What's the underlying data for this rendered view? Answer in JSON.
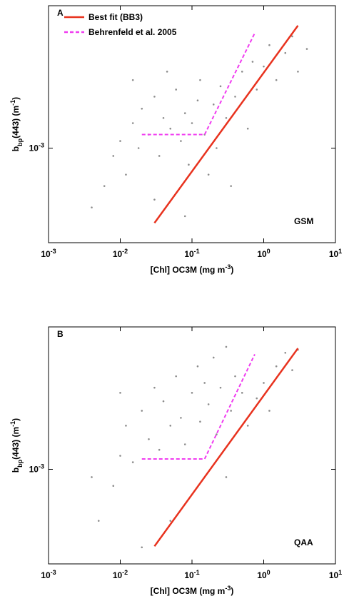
{
  "chart_data": [
    {
      "type": "scatter",
      "panel": "A",
      "annotation": "GSM",
      "legend": true,
      "xscale": "log",
      "yscale": "log",
      "xlabel": [
        {
          "text": "[Chl] OC3M (mg m"
        },
        {
          "text": "-3",
          "shift": "super"
        },
        {
          "text": ")"
        }
      ],
      "ylabel": [
        {
          "text": "b"
        },
        {
          "text": "bp",
          "shift": "sub"
        },
        {
          "text": "(443) (m"
        },
        {
          "text": "-1",
          "shift": "super"
        },
        {
          "text": ")"
        }
      ],
      "xlim": [
        0.001,
        10
      ],
      "ylim": [
        0.00028,
        0.0068
      ],
      "xticks": [
        {
          "value": 0.001,
          "label": "10",
          "exponent": "-3"
        },
        {
          "value": 0.01,
          "label": "10",
          "exponent": "-2"
        },
        {
          "value": 0.1,
          "label": "10",
          "exponent": "-1"
        },
        {
          "value": 1,
          "label": "10",
          "exponent": "0"
        },
        {
          "value": 10,
          "label": "10",
          "exponent": "1"
        }
      ],
      "yticks": [
        {
          "value": 0.001,
          "label": "10",
          "exponent": "-3"
        }
      ],
      "points": {
        "color": "#8c8c8c",
        "x": [
          0.004,
          0.006,
          0.008,
          0.01,
          0.012,
          0.015,
          0.018,
          0.02,
          0.025,
          0.03,
          0.035,
          0.04,
          0.05,
          0.06,
          0.07,
          0.08,
          0.09,
          0.1,
          0.12,
          0.13,
          0.15,
          0.17,
          0.2,
          0.22,
          0.25,
          0.3,
          0.35,
          0.4,
          0.5,
          0.6,
          0.7,
          0.8,
          1,
          1.2,
          1.5,
          2,
          2.5,
          3,
          4,
          0.03,
          0.08,
          0.015,
          0.045
        ],
        "y": [
          0.00045,
          0.0006,
          0.0009,
          0.0011,
          0.0007,
          0.0014,
          0.001,
          0.0017,
          0.0012,
          0.002,
          0.0009,
          0.0015,
          0.0013,
          0.0022,
          0.0011,
          0.0016,
          0.0008,
          0.0014,
          0.0019,
          0.0025,
          0.0012,
          0.0007,
          0.0018,
          0.001,
          0.0023,
          0.0015,
          0.0006,
          0.002,
          0.0028,
          0.0013,
          0.0032,
          0.0022,
          0.003,
          0.004,
          0.0025,
          0.0036,
          0.0045,
          0.0028,
          0.0038,
          0.0005,
          0.0004,
          0.0025,
          0.0028
        ]
      },
      "series": [
        {
          "name": "Best fit (BB3)",
          "color": "#e8321e",
          "dash": false,
          "x": [
            0.03,
            3
          ],
          "y": [
            0.000365,
            0.0052
          ]
        },
        {
          "name": "Behrenfeld et al. 2005",
          "color": "#f03cf0",
          "dash": true,
          "x": [
            0.02,
            0.15,
            0.75
          ],
          "y": [
            0.0012,
            0.0012,
            0.0047
          ]
        }
      ]
    },
    {
      "type": "scatter",
      "panel": "B",
      "annotation": "QAA",
      "legend": false,
      "xscale": "log",
      "yscale": "log",
      "xlabel": [
        {
          "text": "[Chl] OC3M (mg m"
        },
        {
          "text": "-3",
          "shift": "super"
        },
        {
          "text": ")"
        }
      ],
      "ylabel": [
        {
          "text": "b"
        },
        {
          "text": "bp",
          "shift": "sub"
        },
        {
          "text": "(443) (m"
        },
        {
          "text": "-1",
          "shift": "super"
        },
        {
          "text": ")"
        }
      ],
      "xlim": [
        0.001,
        10
      ],
      "ylim": [
        0.00028,
        0.0068
      ],
      "xticks": [
        {
          "value": 0.001,
          "label": "10",
          "exponent": "-3"
        },
        {
          "value": 0.01,
          "label": "10",
          "exponent": "-2"
        },
        {
          "value": 0.1,
          "label": "10",
          "exponent": "-1"
        },
        {
          "value": 1,
          "label": "10",
          "exponent": "0"
        },
        {
          "value": 10,
          "label": "10",
          "exponent": "1"
        }
      ],
      "yticks": [
        {
          "value": 0.001,
          "label": "10",
          "exponent": "-3"
        }
      ],
      "points": {
        "color": "#8c8c8c",
        "x": [
          0.005,
          0.008,
          0.01,
          0.012,
          0.015,
          0.02,
          0.025,
          0.03,
          0.035,
          0.04,
          0.05,
          0.06,
          0.07,
          0.08,
          0.1,
          0.12,
          0.13,
          0.15,
          0.17,
          0.2,
          0.22,
          0.25,
          0.3,
          0.35,
          0.4,
          0.5,
          0.6,
          0.8,
          1,
          1.2,
          1.5,
          2,
          2.5,
          3,
          0.02,
          0.05,
          0.3,
          0.01,
          0.004
        ],
        "y": [
          0.0005,
          0.0008,
          0.0012,
          0.0018,
          0.0011,
          0.0022,
          0.0015,
          0.003,
          0.0013,
          0.0025,
          0.0018,
          0.0035,
          0.002,
          0.0014,
          0.0028,
          0.004,
          0.0019,
          0.0032,
          0.0024,
          0.0045,
          0.0016,
          0.003,
          0.0052,
          0.0022,
          0.0035,
          0.0028,
          0.0018,
          0.0026,
          0.0032,
          0.0022,
          0.004,
          0.0048,
          0.0038,
          0.005,
          0.00035,
          0.0005,
          0.0009,
          0.0028,
          0.0009
        ]
      },
      "series": [
        {
          "name": "Best fit (BB3)",
          "color": "#e8321e",
          "dash": false,
          "x": [
            0.03,
            3
          ],
          "y": [
            0.000355,
            0.0051
          ]
        },
        {
          "name": "Behrenfeld et al. 2005",
          "color": "#f03cf0",
          "dash": true,
          "x": [
            0.02,
            0.15,
            0.75
          ],
          "y": [
            0.00115,
            0.00115,
            0.0047
          ]
        }
      ]
    }
  ]
}
